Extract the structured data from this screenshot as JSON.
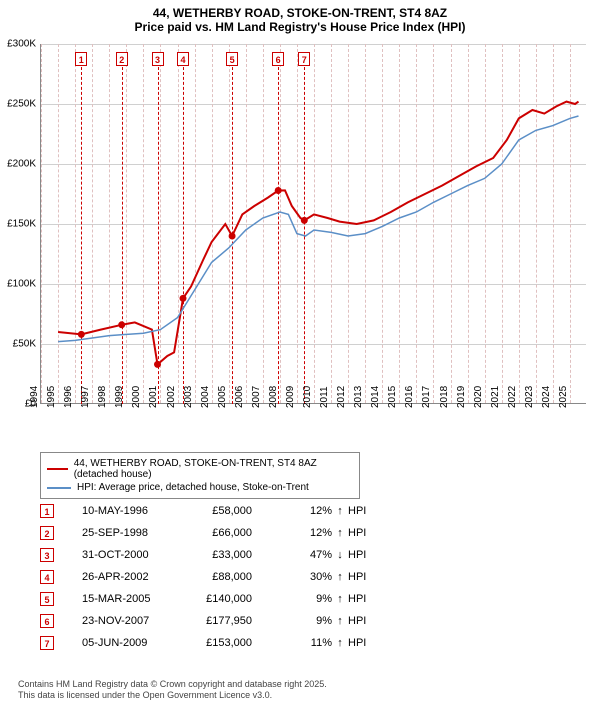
{
  "title_line1": "44, WETHERBY ROAD, STOKE-ON-TRENT, ST4 8AZ",
  "title_line2": "Price paid vs. HM Land Registry's House Price Index (HPI)",
  "chart": {
    "type": "line",
    "xlim": [
      1994,
      2026
    ],
    "ylim": [
      0,
      300000
    ],
    "ytick_step": 50000,
    "xtick_step": 1,
    "grid_color": "#d0d0d0",
    "vgrid_color": "#e0c0c0",
    "background_color": "#ffffff",
    "axis_color": "#888888",
    "y_ticks": [
      "£0",
      "£50K",
      "£100K",
      "£150K",
      "£200K",
      "£250K",
      "£300K"
    ],
    "x_ticks": [
      "1994",
      "1995",
      "1996",
      "1997",
      "1998",
      "1999",
      "2000",
      "2001",
      "2002",
      "2003",
      "2004",
      "2005",
      "2006",
      "2007",
      "2008",
      "2009",
      "2010",
      "2011",
      "2012",
      "2013",
      "2014",
      "2015",
      "2016",
      "2017",
      "2018",
      "2019",
      "2020",
      "2021",
      "2022",
      "2023",
      "2024",
      "2025"
    ],
    "series": [
      {
        "name": "44, WETHERBY ROAD, STOKE-ON-TRENT, ST4 8AZ (detached house)",
        "color": "#cc0000",
        "width": 2,
        "data": [
          [
            1995.0,
            60000
          ],
          [
            1996.36,
            58000
          ],
          [
            1997.5,
            62000
          ],
          [
            1998.73,
            66000
          ],
          [
            1999.5,
            68000
          ],
          [
            2000.5,
            62000
          ],
          [
            2000.83,
            33000
          ],
          [
            2001.4,
            40000
          ],
          [
            2001.8,
            43000
          ],
          [
            2002.32,
            88000
          ],
          [
            2002.8,
            98000
          ],
          [
            2003.5,
            120000
          ],
          [
            2004.0,
            135000
          ],
          [
            2004.8,
            150000
          ],
          [
            2005.2,
            140000
          ],
          [
            2005.8,
            158000
          ],
          [
            2006.5,
            165000
          ],
          [
            2007.3,
            172000
          ],
          [
            2007.9,
            177950
          ],
          [
            2008.3,
            178000
          ],
          [
            2008.7,
            165000
          ],
          [
            2009.2,
            155000
          ],
          [
            2009.43,
            153000
          ],
          [
            2010.0,
            158000
          ],
          [
            2010.8,
            155000
          ],
          [
            2011.5,
            152000
          ],
          [
            2012.5,
            150000
          ],
          [
            2013.5,
            153000
          ],
          [
            2014.5,
            160000
          ],
          [
            2015.5,
            168000
          ],
          [
            2016.5,
            175000
          ],
          [
            2017.5,
            182000
          ],
          [
            2018.5,
            190000
          ],
          [
            2019.5,
            198000
          ],
          [
            2020.5,
            205000
          ],
          [
            2021.3,
            220000
          ],
          [
            2022.0,
            238000
          ],
          [
            2022.8,
            245000
          ],
          [
            2023.5,
            242000
          ],
          [
            2024.2,
            248000
          ],
          [
            2024.8,
            252000
          ],
          [
            2025.3,
            250000
          ],
          [
            2025.5,
            252000
          ]
        ]
      },
      {
        "name": "HPI: Average price, detached house, Stoke-on-Trent",
        "color": "#5b8fc7",
        "width": 1.5,
        "data": [
          [
            1995.0,
            52000
          ],
          [
            1996.0,
            53000
          ],
          [
            1997.0,
            55000
          ],
          [
            1998.0,
            57000
          ],
          [
            1999.0,
            58000
          ],
          [
            2000.0,
            59000
          ],
          [
            2001.0,
            62000
          ],
          [
            2002.0,
            72000
          ],
          [
            2003.0,
            95000
          ],
          [
            2004.0,
            118000
          ],
          [
            2005.0,
            130000
          ],
          [
            2006.0,
            145000
          ],
          [
            2007.0,
            155000
          ],
          [
            2008.0,
            160000
          ],
          [
            2008.5,
            158000
          ],
          [
            2009.0,
            142000
          ],
          [
            2009.5,
            140000
          ],
          [
            2010.0,
            145000
          ],
          [
            2011.0,
            143000
          ],
          [
            2012.0,
            140000
          ],
          [
            2013.0,
            142000
          ],
          [
            2014.0,
            148000
          ],
          [
            2015.0,
            155000
          ],
          [
            2016.0,
            160000
          ],
          [
            2017.0,
            168000
          ],
          [
            2018.0,
            175000
          ],
          [
            2019.0,
            182000
          ],
          [
            2020.0,
            188000
          ],
          [
            2021.0,
            200000
          ],
          [
            2022.0,
            220000
          ],
          [
            2023.0,
            228000
          ],
          [
            2024.0,
            232000
          ],
          [
            2025.0,
            238000
          ],
          [
            2025.5,
            240000
          ]
        ]
      }
    ],
    "markers": [
      {
        "x": 1996.36,
        "y": 58000
      },
      {
        "x": 1998.73,
        "y": 66000
      },
      {
        "x": 2000.83,
        "y": 33000
      },
      {
        "x": 2002.32,
        "y": 88000
      },
      {
        "x": 2005.2,
        "y": 140000
      },
      {
        "x": 2007.9,
        "y": 177950
      },
      {
        "x": 2009.43,
        "y": 153000
      }
    ],
    "marker_color": "#cc0000",
    "marker_radius": 3.5
  },
  "events": [
    {
      "idx": "1",
      "date": "10-MAY-1996",
      "price": "£58,000",
      "pct": "12%",
      "arrow": "↑",
      "hpi": "HPI",
      "x": 1996.36
    },
    {
      "idx": "2",
      "date": "25-SEP-1998",
      "price": "£66,000",
      "pct": "12%",
      "arrow": "↑",
      "hpi": "HPI",
      "x": 1998.73
    },
    {
      "idx": "3",
      "date": "31-OCT-2000",
      "price": "£33,000",
      "pct": "47%",
      "arrow": "↓",
      "hpi": "HPI",
      "x": 2000.83
    },
    {
      "idx": "4",
      "date": "26-APR-2002",
      "price": "£88,000",
      "pct": "30%",
      "arrow": "↑",
      "hpi": "HPI",
      "x": 2002.32
    },
    {
      "idx": "5",
      "date": "15-MAR-2005",
      "price": "£140,000",
      "pct": "9%",
      "arrow": "↑",
      "hpi": "HPI",
      "x": 2005.2
    },
    {
      "idx": "6",
      "date": "23-NOV-2007",
      "price": "£177,950",
      "pct": "9%",
      "arrow": "↑",
      "hpi": "HPI",
      "x": 2007.9
    },
    {
      "idx": "7",
      "date": "05-JUN-2009",
      "price": "£153,000",
      "pct": "11%",
      "arrow": "↑",
      "hpi": "HPI",
      "x": 2009.43
    }
  ],
  "legend": [
    {
      "color": "#cc0000",
      "label": "44, WETHERBY ROAD, STOKE-ON-TRENT, ST4 8AZ (detached house)"
    },
    {
      "color": "#5b8fc7",
      "label": "HPI: Average price, detached house, Stoke-on-Trent"
    }
  ],
  "footer_line1": "Contains HM Land Registry data © Crown copyright and database right 2025.",
  "footer_line2": "This data is licensed under the Open Government Licence v3.0."
}
